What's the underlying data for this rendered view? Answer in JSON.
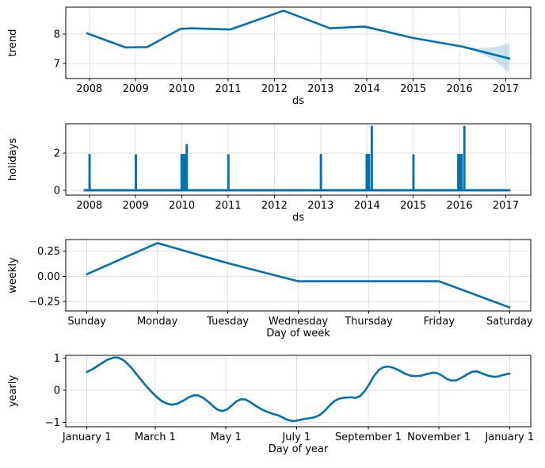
{
  "figure_type": "prophet-forecast-components",
  "colors": {
    "line": "#0072B2",
    "band_fill": "#0072B2",
    "band_alpha": 0.2,
    "grid": "#e0e0e0",
    "axis": "#000000",
    "background": "#ffffff"
  },
  "chart_data": [
    {
      "name": "trend",
      "type": "line",
      "title": "",
      "xlabel": "ds",
      "ylabel": "trend",
      "grid": true,
      "xlim": [
        2007.49,
        2017.54
      ],
      "ylim": [
        6.49,
        8.92
      ],
      "xticks": [
        {
          "v": 2008,
          "label": "2008"
        },
        {
          "v": 2009,
          "label": "2009"
        },
        {
          "v": 2010,
          "label": "2010"
        },
        {
          "v": 2011,
          "label": "2011"
        },
        {
          "v": 2012,
          "label": "2012"
        },
        {
          "v": 2013,
          "label": "2013"
        },
        {
          "v": 2014,
          "label": "2014"
        },
        {
          "v": 2015,
          "label": "2015"
        },
        {
          "v": 2016,
          "label": "2016"
        },
        {
          "v": 2017,
          "label": "2017"
        }
      ],
      "yticks": [
        {
          "v": 7,
          "label": "7"
        },
        {
          "v": 8,
          "label": "8"
        }
      ],
      "series": [
        {
          "name": "trend",
          "x": [
            2007.95,
            2008.78,
            2009.25,
            2009.97,
            2010.2,
            2011.05,
            2012.2,
            2013.2,
            2013.95,
            2015.0,
            2016.05,
            2017.08
          ],
          "y": [
            8.03,
            7.55,
            7.56,
            8.18,
            8.2,
            8.16,
            8.8,
            8.2,
            8.26,
            7.87,
            7.58,
            7.17
          ]
        }
      ],
      "uncertainty_band": {
        "x": [
          2016.05,
          2016.4,
          2016.75,
          2017.08
        ],
        "upper": [
          7.58,
          7.52,
          7.56,
          7.68
        ],
        "lower": [
          7.58,
          7.38,
          7.12,
          6.67
        ]
      }
    },
    {
      "name": "holidays",
      "type": "line",
      "title": "",
      "xlabel": "ds",
      "ylabel": "holidays",
      "grid": true,
      "xlim": [
        2007.49,
        2017.54
      ],
      "ylim": [
        -0.26,
        3.57
      ],
      "xticks": [
        {
          "v": 2008,
          "label": "2008"
        },
        {
          "v": 2009,
          "label": "2009"
        },
        {
          "v": 2010,
          "label": "2010"
        },
        {
          "v": 2011,
          "label": "2011"
        },
        {
          "v": 2012,
          "label": "2012"
        },
        {
          "v": 2013,
          "label": "2013"
        },
        {
          "v": 2014,
          "label": "2014"
        },
        {
          "v": 2015,
          "label": "2015"
        },
        {
          "v": 2016,
          "label": "2016"
        },
        {
          "v": 2017,
          "label": "2017"
        }
      ],
      "yticks": [
        {
          "v": 0,
          "label": "0"
        },
        {
          "v": 2,
          "label": "2"
        }
      ],
      "baseline": {
        "x1": 2007.9,
        "x2": 2017.08,
        "y": 0
      },
      "spikes": [
        {
          "x": 2007.98,
          "w": 0.05,
          "h": 1.95
        },
        {
          "x": 2008.98,
          "w": 0.05,
          "h": 1.93
        },
        {
          "x": 2009.97,
          "w": 0.13,
          "h": 1.95
        },
        {
          "x": 2010.08,
          "w": 0.05,
          "h": 2.48
        },
        {
          "x": 2010.98,
          "w": 0.05,
          "h": 1.93
        },
        {
          "x": 2012.98,
          "w": 0.05,
          "h": 1.95
        },
        {
          "x": 2013.97,
          "w": 0.1,
          "h": 1.95
        },
        {
          "x": 2014.08,
          "w": 0.05,
          "h": 3.45
        },
        {
          "x": 2014.98,
          "w": 0.05,
          "h": 1.93
        },
        {
          "x": 2015.95,
          "w": 0.12,
          "h": 1.95
        },
        {
          "x": 2016.08,
          "w": 0.05,
          "h": 3.45
        }
      ]
    },
    {
      "name": "weekly",
      "type": "line",
      "title": "",
      "xlabel": "Day of week",
      "ylabel": "weekly",
      "grid": true,
      "xlim": [
        -0.3,
        6.3
      ],
      "ylim": [
        -0.345,
        0.365
      ],
      "xticks": [
        {
          "v": 0,
          "label": "Sunday"
        },
        {
          "v": 1,
          "label": "Monday"
        },
        {
          "v": 2,
          "label": "Tuesday"
        },
        {
          "v": 3,
          "label": "Wednesday"
        },
        {
          "v": 4,
          "label": "Thursday"
        },
        {
          "v": 5,
          "label": "Friday"
        },
        {
          "v": 6,
          "label": "Saturday"
        }
      ],
      "yticks": [
        {
          "v": -0.25,
          "label": "−0.25"
        },
        {
          "v": 0,
          "label": "0.00"
        },
        {
          "v": 0.25,
          "label": "0.25"
        }
      ],
      "series": [
        {
          "name": "weekly",
          "x": [
            0,
            1,
            2,
            3,
            4,
            5,
            6
          ],
          "y": [
            0.02,
            0.33,
            0.13,
            -0.05,
            -0.05,
            -0.05,
            -0.31
          ]
        }
      ]
    },
    {
      "name": "yearly",
      "type": "line",
      "title": "",
      "xlabel": "Day of year",
      "ylabel": "yearly",
      "grid": true,
      "xlim": [
        -17.25,
        384.25
      ],
      "ylim": [
        -1.14,
        1.09
      ],
      "xticks": [
        {
          "v": 1,
          "label": "January 1"
        },
        {
          "v": 60,
          "label": "March 1"
        },
        {
          "v": 121,
          "label": "May 1"
        },
        {
          "v": 182,
          "label": "July 1"
        },
        {
          "v": 244,
          "label": "September 1"
        },
        {
          "v": 305,
          "label": "November 1"
        },
        {
          "v": 366,
          "label": "January 1"
        }
      ],
      "yticks": [
        {
          "v": -1,
          "label": "−1"
        },
        {
          "v": 0,
          "label": "0"
        },
        {
          "v": 1,
          "label": "1"
        }
      ],
      "series": [
        {
          "name": "yearly",
          "x": [
            1,
            6,
            12,
            18,
            24,
            28,
            33,
            39,
            45,
            51,
            56,
            61,
            66,
            71,
            75,
            79,
            84,
            89,
            93,
            97,
            101,
            106,
            110,
            114,
            118,
            122,
            126,
            130,
            134,
            138,
            142,
            147,
            152,
            157,
            162,
            166,
            170,
            174,
            178,
            182,
            187,
            192,
            197,
            202,
            207,
            211,
            215,
            219,
            224,
            229,
            233,
            237,
            241,
            245,
            249,
            253,
            257,
            261,
            265,
            270,
            275,
            280,
            285,
            290,
            295,
            300,
            304,
            308,
            312,
            316,
            320,
            325,
            330,
            334,
            338,
            342,
            347,
            352,
            356,
            360,
            364,
            366
          ],
          "y": [
            0.57,
            0.66,
            0.8,
            0.94,
            1.02,
            1.02,
            0.93,
            0.72,
            0.45,
            0.18,
            -0.02,
            -0.2,
            -0.35,
            -0.43,
            -0.45,
            -0.42,
            -0.33,
            -0.22,
            -0.16,
            -0.16,
            -0.23,
            -0.36,
            -0.5,
            -0.61,
            -0.65,
            -0.6,
            -0.48,
            -0.35,
            -0.28,
            -0.29,
            -0.37,
            -0.49,
            -0.6,
            -0.68,
            -0.74,
            -0.78,
            -0.85,
            -0.92,
            -0.96,
            -0.95,
            -0.91,
            -0.88,
            -0.85,
            -0.78,
            -0.62,
            -0.46,
            -0.33,
            -0.26,
            -0.23,
            -0.22,
            -0.24,
            -0.18,
            -0.02,
            0.2,
            0.45,
            0.63,
            0.72,
            0.74,
            0.71,
            0.63,
            0.53,
            0.46,
            0.44,
            0.46,
            0.51,
            0.55,
            0.53,
            0.45,
            0.35,
            0.3,
            0.31,
            0.4,
            0.51,
            0.58,
            0.59,
            0.53,
            0.46,
            0.42,
            0.43,
            0.47,
            0.51,
            0.52
          ]
        }
      ]
    }
  ]
}
